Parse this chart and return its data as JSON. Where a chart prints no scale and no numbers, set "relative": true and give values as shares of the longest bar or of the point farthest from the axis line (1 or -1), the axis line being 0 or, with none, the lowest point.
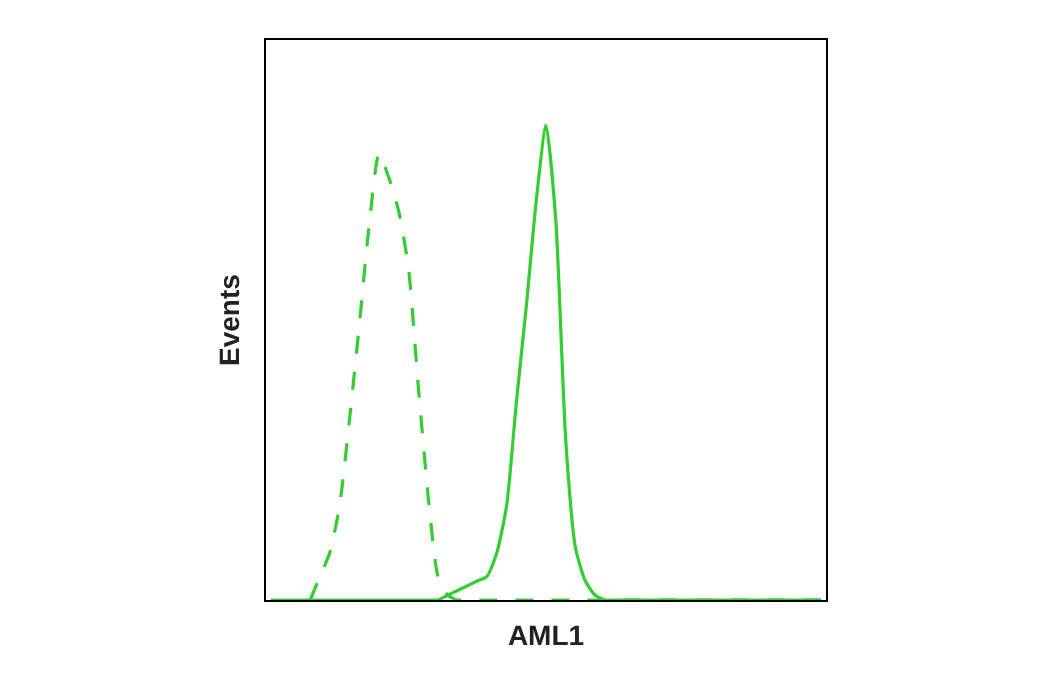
{
  "chart_data": {
    "type": "line",
    "relative": true,
    "xlabel": "AML1",
    "ylabel": "Events",
    "tick_labels": false,
    "categories": [
      null,
      null,
      null,
      null,
      null,
      null,
      null,
      null,
      null,
      null,
      null,
      null,
      null,
      null,
      null,
      null,
      null,
      null,
      null,
      null,
      null,
      null,
      null,
      null,
      null,
      null,
      null,
      null,
      null,
      null,
      null,
      null,
      null,
      null,
      null,
      null,
      null,
      null,
      null,
      null,
      null,
      null,
      null,
      null,
      null,
      null,
      null,
      null,
      null,
      null,
      null,
      null,
      null,
      null,
      null,
      null,
      null
    ],
    "series": [
      {
        "color": "#33cc33",
        "line_style": "dashed",
        "values": [
          null,
          null,
          null,
          null,
          0,
          0.05,
          0.1,
          0.2,
          0.38,
          0.58,
          0.79,
          0.94,
          0.89,
          0.82,
          0.7,
          0.45,
          0.22,
          0.05,
          0.01,
          0,
          0,
          0,
          0,
          0,
          0,
          0,
          0,
          0,
          0,
          0,
          0,
          0,
          0,
          0,
          0,
          0,
          0,
          0,
          0,
          0,
          0,
          0,
          0,
          0,
          0,
          0,
          0,
          0,
          0,
          0,
          0,
          0,
          0,
          0,
          0,
          0,
          0
        ]
      },
      {
        "color": "#33cc33",
        "line_style": "solid",
        "values": [
          0,
          0,
          0,
          0,
          0,
          0,
          0,
          0,
          0,
          0,
          0,
          0,
          0,
          0,
          0,
          0,
          0,
          0,
          0.01,
          0.02,
          0.03,
          0.04,
          0.05,
          0.1,
          0.2,
          0.42,
          0.62,
          0.84,
          1,
          0.8,
          0.34,
          0.11,
          0.04,
          0.01,
          0,
          0,
          0,
          0,
          0,
          0,
          0,
          0,
          0,
          0,
          0,
          0,
          0,
          0,
          0,
          0,
          0,
          0,
          0,
          0,
          0,
          0,
          0
        ]
      }
    ]
  }
}
